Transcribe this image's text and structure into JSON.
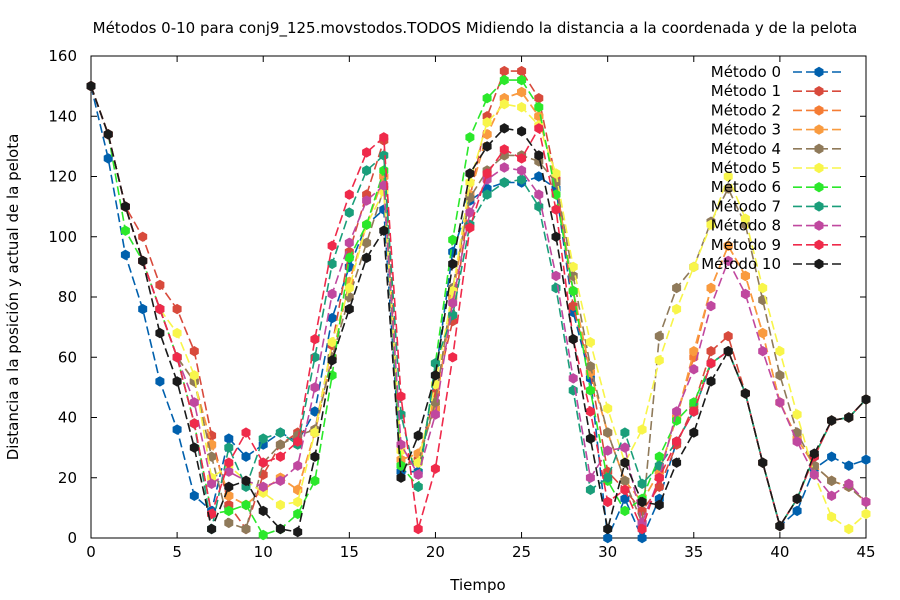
{
  "chart_data": {
    "type": "line",
    "title": "Métodos 0-10 para conj9_125.movstodos.TODOS Midiendo la distancia a la coordenada y de la pelota",
    "xlabel": "Tiempo",
    "ylabel": "Distancia a la posición y actual de la pelota",
    "xlim": [
      0,
      45
    ],
    "ylim": [
      0,
      160
    ],
    "xticks": [
      0,
      5,
      10,
      15,
      20,
      25,
      30,
      35,
      40,
      45
    ],
    "yticks": [
      0,
      20,
      40,
      60,
      80,
      100,
      120,
      140,
      160
    ],
    "grid": false,
    "legend_position": "top-right",
    "series": [
      {
        "name": "Método 0",
        "color": "#0060ad",
        "values": [
          150,
          126,
          94,
          76,
          52,
          36,
          14,
          9,
          33,
          27,
          31,
          35,
          32,
          42,
          73,
          90,
          104,
          109,
          22,
          22,
          54,
          95,
          112,
          116,
          118,
          118,
          120,
          116,
          75,
          53,
          0,
          13,
          0,
          13,
          32,
          42,
          58,
          62,
          48,
          25,
          4,
          9,
          23,
          27,
          24,
          26
        ]
      },
      {
        "name": "Método 1",
        "color": "#d84a3c",
        "values": [
          150,
          134,
          110,
          100,
          84,
          76,
          62,
          34,
          11,
          3,
          21,
          31,
          35,
          36,
          64,
          95,
          114,
          132,
          24,
          26,
          48,
          72,
          113,
          140,
          155,
          155,
          146,
          119,
          77,
          55,
          22,
          16,
          9,
          17,
          31,
          44,
          62,
          67,
          48,
          25,
          4,
          13,
          27,
          39,
          40,
          46
        ]
      },
      {
        "name": "Método 2",
        "color": "#f57c34",
        "values": [
          150,
          134,
          110,
          92,
          76,
          60,
          52,
          31,
          14,
          11,
          16,
          20,
          16,
          35,
          60,
          85,
          104,
          120,
          26,
          28,
          43,
          80,
          114,
          134,
          146,
          148,
          140,
          118,
          82,
          55,
          35,
          19,
          12,
          22,
          40,
          60,
          83,
          97,
          87,
          68,
          45,
          33,
          24,
          19,
          17,
          12
        ]
      },
      {
        "name": "Método 3",
        "color": "#f99b3f",
        "values": [
          150,
          134,
          110,
          92,
          76,
          60,
          52,
          31,
          14,
          11,
          16,
          20,
          16,
          35,
          60,
          85,
          104,
          120,
          26,
          28,
          43,
          80,
          114,
          134,
          146,
          148,
          140,
          118,
          82,
          55,
          35,
          19,
          12,
          22,
          40,
          62,
          83,
          97,
          87,
          68,
          45,
          33,
          24,
          19,
          17,
          12
        ]
      },
      {
        "name": "Método 4",
        "color": "#8f7a5a",
        "values": [
          150,
          134,
          110,
          92,
          76,
          60,
          52,
          27,
          5,
          3,
          25,
          31,
          34,
          36,
          60,
          80,
          98,
          116,
          24,
          25,
          45,
          83,
          113,
          122,
          127,
          127,
          125,
          118,
          87,
          57,
          35,
          19,
          5,
          67,
          83,
          90,
          105,
          116,
          104,
          79,
          54,
          35,
          24,
          19,
          17,
          12
        ]
      },
      {
        "name": "Método 5",
        "color": "#f8f54a",
        "values": [
          150,
          134,
          110,
          92,
          76,
          68,
          54,
          20,
          24,
          19,
          15,
          11,
          12,
          35,
          65,
          83,
          104,
          115,
          29,
          25,
          51,
          82,
          118,
          138,
          144,
          143,
          137,
          121,
          90,
          65,
          43,
          25,
          36,
          59,
          76,
          90,
          104,
          120,
          106,
          83,
          62,
          41,
          21,
          7,
          3,
          8
        ]
      },
      {
        "name": "Método 6",
        "color": "#2be82b",
        "values": [
          150,
          134,
          102,
          92,
          76,
          60,
          38,
          8,
          9,
          11,
          1,
          3,
          8,
          19,
          54,
          93,
          104,
          122,
          24,
          17,
          58,
          99,
          133,
          146,
          152,
          152,
          143,
          114,
          82,
          49,
          19,
          9,
          13,
          27,
          39,
          45,
          58,
          62,
          48,
          25,
          4,
          13,
          27,
          39,
          40,
          46
        ]
      },
      {
        "name": "Método 7",
        "color": "#1a9e7a",
        "values": [
          150,
          134,
          110,
          92,
          76,
          60,
          38,
          3,
          30,
          17,
          33,
          35,
          31,
          60,
          91,
          108,
          122,
          127,
          41,
          17,
          58,
          74,
          104,
          114,
          118,
          119,
          110,
          83,
          49,
          16,
          20,
          35,
          18,
          24,
          32,
          42,
          58,
          62,
          48,
          25,
          4,
          13,
          27,
          39,
          40,
          46
        ]
      },
      {
        "name": "Método 8",
        "color": "#c0489f",
        "values": [
          150,
          134,
          110,
          92,
          76,
          60,
          45,
          18,
          22,
          19,
          17,
          19,
          24,
          50,
          81,
          98,
          112,
          117,
          31,
          21,
          41,
          78,
          108,
          119,
          123,
          122,
          114,
          87,
          53,
          20,
          29,
          30,
          5,
          20,
          42,
          56,
          77,
          92,
          81,
          62,
          45,
          32,
          21,
          14,
          18,
          12
        ]
      },
      {
        "name": "Método 9",
        "color": "#ef2a4a",
        "values": [
          150,
          134,
          110,
          92,
          76,
          60,
          38,
          8,
          25,
          35,
          25,
          27,
          32,
          66,
          97,
          114,
          128,
          133,
          47,
          3,
          23,
          60,
          103,
          121,
          129,
          126,
          136,
          109,
          66,
          42,
          12,
          16,
          3,
          20,
          32,
          42,
          58,
          62,
          48,
          25,
          4,
          13,
          27,
          39,
          40,
          46
        ]
      },
      {
        "name": "Método 10",
        "color": "#1a1a1a",
        "values": [
          150,
          134,
          110,
          92,
          68,
          52,
          30,
          3,
          17,
          19,
          9,
          3,
          2,
          27,
          59,
          76,
          93,
          102,
          20,
          34,
          54,
          91,
          121,
          130,
          136,
          135,
          127,
          100,
          66,
          33,
          3,
          25,
          12,
          11,
          25,
          35,
          52,
          62,
          48,
          25,
          4,
          13,
          28,
          39,
          40,
          46
        ]
      }
    ]
  }
}
